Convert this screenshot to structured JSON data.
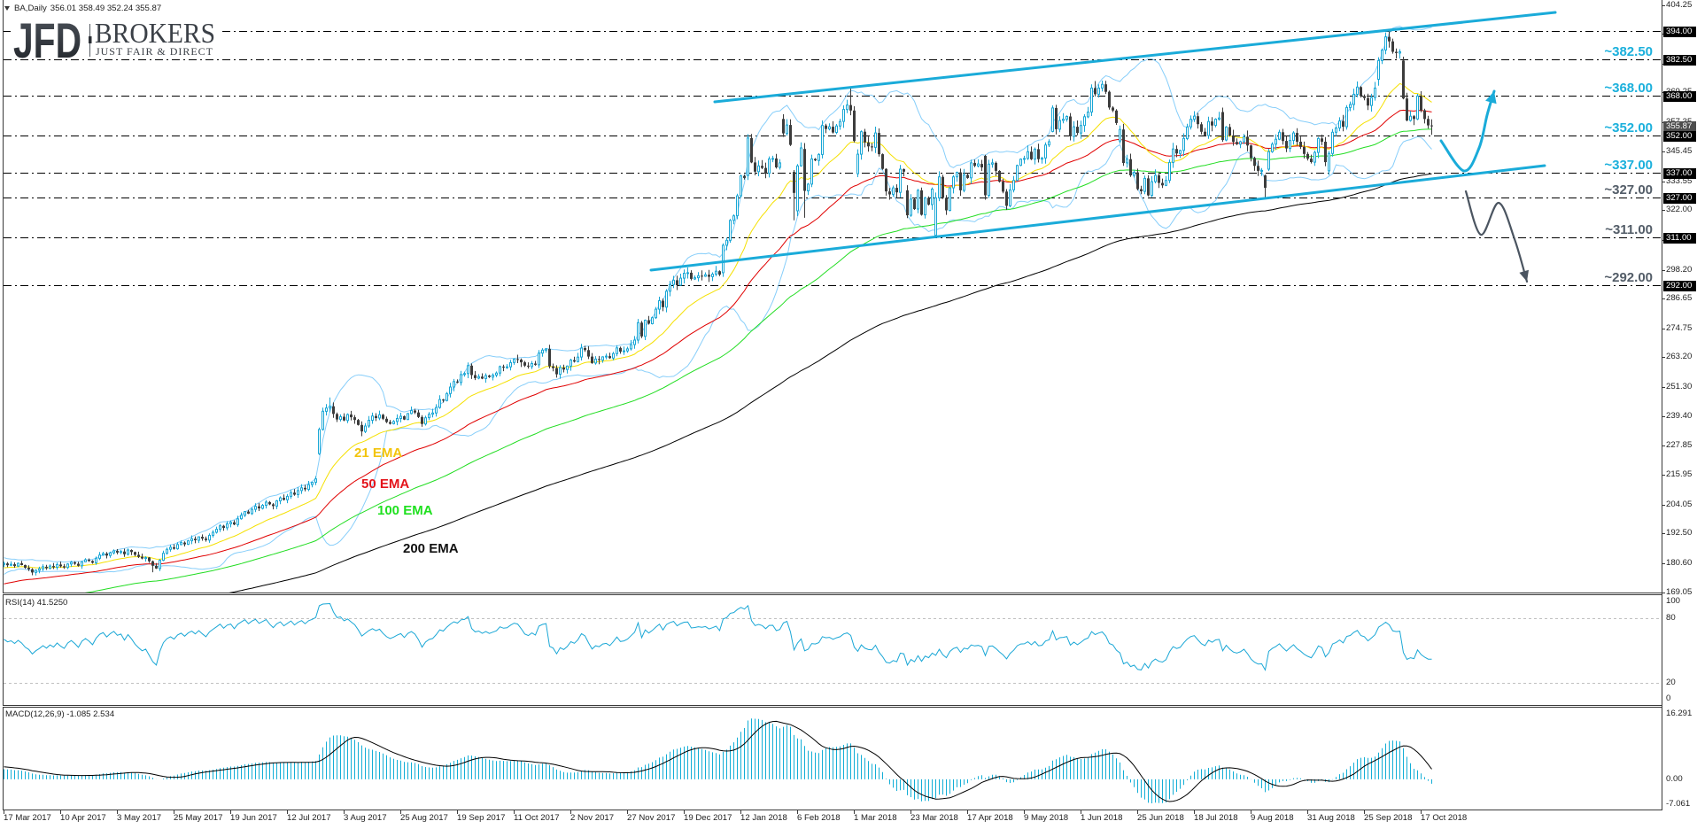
{
  "header": {
    "symbol": "BA,Daily",
    "ohlc": "356.01 358.49 352.24 355.87",
    "dropdown_icon": "triangle-down-icon"
  },
  "logo": {
    "brand": "JFD",
    "name": "BROKERS",
    "tagline": "JUST FAIR & DIRECT"
  },
  "indicators": {
    "rsi_label": "RSI(14) 41.5250",
    "macd_label": "MACD(12,26,9) -1.085 2.534"
  },
  "ema_labels": [
    {
      "text": "21 EMA",
      "color": "#f2c40c"
    },
    {
      "text": "50 EMA",
      "color": "#e4141b"
    },
    {
      "text": "100 EMA",
      "color": "#1fe01f"
    },
    {
      "text": "200 EMA",
      "color": "#111111"
    }
  ],
  "colors": {
    "bull": "#1aa7d6",
    "bear": "#3c3c3c",
    "channel": "#1aabd9",
    "bands": "#87cefa",
    "level_line": "#000000",
    "axis_text": "#222222",
    "border": "#3a3a3a"
  },
  "chart_data": {
    "type": "line",
    "subtype": "candlestick",
    "title": "BA,Daily",
    "xlabel": "",
    "ylabel": "",
    "ylim": [
      169.05,
      404.25
    ],
    "grid": false,
    "legend": "none",
    "last_bar": {
      "open": 356.01,
      "high": 358.49,
      "low": 352.24,
      "close": 355.87
    },
    "y_ticks": [
      "404.25",
      "392.70",
      "380.80",
      "369.25",
      "357.35",
      "345.45",
      "333.55",
      "322.00",
      "310.10",
      "298.20",
      "286.65",
      "274.75",
      "263.20",
      "251.30",
      "239.40",
      "227.85",
      "215.95",
      "204.05",
      "192.50",
      "180.60",
      "169.05"
    ],
    "x_labels": [
      {
        "bar": 0,
        "label": "17 Mar 2017"
      },
      {
        "bar": 16,
        "label": "10 Apr 2017"
      },
      {
        "bar": 32,
        "label": "3 May 2017"
      },
      {
        "bar": 48,
        "label": "25 May 2017"
      },
      {
        "bar": 64,
        "label": "19 Jun 2017"
      },
      {
        "bar": 80,
        "label": "12 Jul 2017"
      },
      {
        "bar": 96,
        "label": "3 Aug 2017"
      },
      {
        "bar": 112,
        "label": "25 Aug 2017"
      },
      {
        "bar": 128,
        "label": "19 Sep 2017"
      },
      {
        "bar": 144,
        "label": "11 Oct 2017"
      },
      {
        "bar": 160,
        "label": "2 Nov 2017"
      },
      {
        "bar": 176,
        "label": "27 Nov 2017"
      },
      {
        "bar": 192,
        "label": "19 Dec 2017"
      },
      {
        "bar": 208,
        "label": "12 Jan 2018"
      },
      {
        "bar": 224,
        "label": "6 Feb 2018"
      },
      {
        "bar": 240,
        "label": "1 Mar 2018"
      },
      {
        "bar": 256,
        "label": "23 Mar 2018"
      },
      {
        "bar": 272,
        "label": "17 Apr 2018"
      },
      {
        "bar": 288,
        "label": "9 May 2018"
      },
      {
        "bar": 304,
        "label": "1 Jun 2018"
      },
      {
        "bar": 320,
        "label": "25 Jun 2018"
      },
      {
        "bar": 336,
        "label": "18 Jul 2018"
      },
      {
        "bar": 352,
        "label": "9 Aug 2018"
      },
      {
        "bar": 368,
        "label": "31 Aug 2018"
      },
      {
        "bar": 384,
        "label": "25 Sep 2018"
      },
      {
        "bar": 400,
        "label": "17 Oct 2018"
      }
    ],
    "pre_closes": [
      175.2,
      176.8,
      178.4,
      177.1,
      179.6,
      180.9,
      179.2,
      181.4,
      182.1,
      180.6,
      179.0,
      178.3,
      180.2,
      181.5,
      179.8,
      178.9,
      180.7,
      179.6,
      180.1
    ],
    "closes": [
      180.5,
      179.8,
      180.2,
      179.5,
      180.6,
      179.9,
      178.8,
      178.2,
      176.9,
      177.8,
      178.4,
      179.2,
      178.6,
      179.5,
      179.0,
      180.1,
      179.4,
      178.9,
      180.3,
      181.0,
      180.4,
      179.6,
      181.2,
      182.0,
      181.5,
      180.8,
      182.6,
      183.9,
      184.5,
      183.7,
      184.8,
      185.6,
      184.9,
      185.3,
      184.2,
      185.9,
      185.1,
      184.0,
      183.2,
      182.5,
      182.9,
      181.4,
      179.6,
      178.5,
      181.8,
      184.6,
      186.2,
      187.0,
      186.4,
      188.1,
      188.9,
      188.2,
      189.6,
      190.4,
      189.8,
      191.2,
      190.5,
      189.9,
      191.8,
      193.0,
      194.2,
      195.6,
      194.8,
      196.4,
      197.0,
      196.1,
      198.4,
      199.8,
      201.3,
      200.5,
      202.2,
      203.4,
      202.6,
      203.8,
      205.1,
      204.2,
      203.5,
      205.6,
      206.8,
      206.0,
      207.4,
      208.9,
      208.1,
      209.7,
      210.8,
      210.2,
      212.1,
      213.0,
      214.4,
      234.2,
      241.5,
      242.8,
      243.5,
      240.4,
      238.2,
      239.3,
      237.8,
      240.2,
      239.1,
      238.0,
      236.0,
      233.4,
      235.6,
      237.9,
      239.6,
      238.8,
      240.1,
      238.5,
      237.2,
      236.5,
      237.4,
      238.6,
      239.5,
      238.2,
      240.6,
      241.8,
      241.0,
      239.2,
      236.4,
      238.9,
      240.3,
      240.8,
      243.0,
      246.2,
      245.8,
      248.6,
      251.2,
      253.4,
      253.0,
      256.2,
      256.6,
      259.8,
      256.0,
      254.8,
      255.4,
      254.6,
      255.8,
      255.2,
      256.0,
      256.8,
      259.4,
      259.0,
      259.3,
      261.0,
      262.4,
      262.2,
      261.1,
      259.8,
      259.4,
      260.6,
      260.1,
      264.8,
      266.0,
      266.5,
      259.5,
      258.8,
      256.3,
      259.0,
      258.2,
      259.6,
      262.0,
      261.4,
      263.2,
      266.8,
      266.0,
      263.4,
      260.8,
      262.4,
      262.0,
      263.3,
      263.6,
      262.8,
      264.6,
      266.9,
      265.4,
      265.7,
      266.5,
      268.2,
      270.0,
      277.0,
      271.5,
      278.0,
      276.6,
      279.0,
      282.4,
      285.8,
      283.2,
      289.6,
      292.3,
      294.0,
      292.0,
      294.8,
      296.8,
      297.0,
      294.5,
      295.0,
      295.8,
      295.6,
      296.2,
      295.4,
      296.4,
      297.6,
      296.2,
      308.0,
      310.0,
      318.0,
      319.8,
      327.8,
      335.8,
      335.0,
      351.0,
      341.2,
      337.5,
      339.8,
      339.0,
      336.8,
      342.6,
      342.8,
      339.2,
      341.0,
      352.8,
      356.2,
      348.2,
      329.0,
      339.8,
      347.0,
      329.8,
      332.5,
      342.6,
      342.0,
      344.4,
      356.0,
      354.6,
      355.5,
      353.2,
      355.8,
      357.6,
      362.4,
      364.2,
      362.0,
      349.8,
      344.5,
      353.5,
      349.2,
      347.6,
      347.2,
      353.0,
      344.5,
      338.6,
      329.6,
      328.4,
      331.0,
      329.2,
      338.5,
      337.5,
      320.0,
      326.5,
      322.5,
      330.0,
      320.2,
      327.0,
      324.3,
      330.5,
      327.0,
      335.4,
      327.0,
      322.0,
      331.0,
      335.4,
      337.2,
      330.0,
      336.2,
      335.0,
      341.0,
      339.8,
      340.6,
      339.2,
      328.0,
      340.5,
      341.0,
      337.8,
      333.5,
      329.5,
      323.8,
      330.2,
      334.0,
      340.0,
      342.5,
      342.8,
      345.5,
      342.5,
      346.5,
      342.5,
      343.0,
      348.2,
      349.5,
      363.0,
      354.5,
      358.0,
      358.5,
      359.6,
      351.6,
      355.5,
      353.0,
      356.0,
      359.5,
      361.4,
      371.0,
      368.5,
      371.0,
      372.5,
      369.5,
      363.2,
      362.0,
      357.0,
      354.4,
      341.0,
      342.5,
      336.0,
      337.2,
      330.5,
      329.6,
      334.8,
      328.0,
      333.5,
      336.0,
      333.0,
      332.0,
      334.0,
      341.2,
      346.6,
      344.8,
      346.0,
      350.8,
      355.4,
      358.5,
      359.7,
      356.5,
      353.5,
      352.0,
      357.6,
      356.0,
      358.5,
      359.0,
      350.2,
      355.4,
      352.0,
      349.4,
      348.5,
      349.5,
      351.5,
      348.0,
      343.0,
      339.8,
      337.8,
      338.0,
      331.0,
      345.5,
      348.5,
      350.5,
      353.3,
      349.8,
      346.8,
      350.0,
      353.0,
      349.5,
      347.4,
      344.6,
      342.7,
      341.3,
      345.2,
      350.8,
      349.5,
      341.3,
      344.8,
      353.3,
      355.0,
      357.8,
      355.5,
      363.2,
      364.4,
      368.5,
      371.4,
      367.8,
      367.0,
      364.0,
      367.2,
      371.0,
      382.0,
      386.2,
      391.5,
      389.7,
      385.5,
      385.0,
      385.5,
      366.8,
      358.0,
      359.7,
      358.6,
      367.8,
      362.1,
      358.6,
      356.0,
      355.87
    ],
    "open_overrides": {
      "89": 224.5,
      "203": 297.0,
      "210": 336.0,
      "220": 358.6,
      "223": 337.4,
      "224": 321.8,
      "226": 346.6,
      "241": 336.7,
      "255": 330.0,
      "263": 312.0,
      "277": 343.8,
      "296": 353.6,
      "315": 349.8,
      "344": 361.4,
      "356": 336.0,
      "357": 338.5,
      "374": 337.8,
      "388": 374.5,
      "395": 382.0,
      "399": 358.6,
      "403": 356.01
    },
    "high_overrides": {
      "92": 247.0,
      "210": 352.5,
      "220": 360.5,
      "239": 371.0,
      "307": 372.5,
      "308": 373.8,
      "390": 393.3,
      "403": 358.49
    },
    "low_overrides": {
      "42": 177.0,
      "101": 231.5,
      "223": 318.0,
      "226": 319.0,
      "263": 311.0,
      "356": 327.1,
      "403": 352.24
    },
    "levels": [
      {
        "price": 394.0,
        "label": "",
        "color": "#1bb0dc"
      },
      {
        "price": 382.5,
        "label": "~382.50",
        "color": "#1bb0dc"
      },
      {
        "price": 368.0,
        "label": "~368.00",
        "color": "#1bb0dc"
      },
      {
        "price": 352.0,
        "label": "~352.00",
        "color": "#1bb0dc"
      },
      {
        "price": 337.0,
        "label": "~337.00",
        "color": "#1bb0dc"
      },
      {
        "price": 327.0,
        "label": "~327.00",
        "color": "#535d68"
      },
      {
        "price": 311.0,
        "label": "~311.00",
        "color": "#535d68"
      },
      {
        "price": 292.0,
        "label": "~292.00",
        "color": "#535d68"
      }
    ],
    "price_tags": [
      {
        "text": "394.00",
        "price": 394.0,
        "bg": "#000000"
      },
      {
        "text": "382.50",
        "price": 382.5,
        "bg": "#000000"
      },
      {
        "text": "368.00",
        "price": 368.0,
        "bg": "#000000"
      },
      {
        "text": "355.87",
        "price": 355.87,
        "bg": "#4d4d4d"
      },
      {
        "text": "352.00",
        "price": 352.0,
        "bg": "#000000"
      },
      {
        "text": "337.00",
        "price": 337.0,
        "bg": "#000000"
      },
      {
        "text": "327.00",
        "price": 327.0,
        "bg": "#000000"
      },
      {
        "text": "311.00",
        "price": 311.0,
        "bg": "#000000"
      },
      {
        "text": "292.00",
        "price": 292.0,
        "bg": "#000000"
      }
    ],
    "series": [
      {
        "name": "21 EMA",
        "period": 21,
        "color": "#f5e000",
        "initial_value": 178.6
      },
      {
        "name": "50 EMA",
        "period": 50,
        "color": "#e00000",
        "initial_value": 172.0
      },
      {
        "name": "100 EMA",
        "period": 100,
        "color": "#22dd22",
        "initial_value": 162.0
      },
      {
        "name": "200 EMA",
        "period": 200,
        "color": "#000000",
        "initial_value": 154.0
      }
    ],
    "bollinger": {
      "name": "Bollinger Bands",
      "period": 20,
      "deviation": 2,
      "color": "#87cefa"
    },
    "trend_channel": {
      "color": "#1aabd9",
      "upper": {
        "from": [
          200.75,
          365.46
        ],
        "to": [
          438,
          401.3
        ]
      },
      "lower": {
        "from": [
          182.75,
          298.05
        ],
        "to": [
          435,
          339.91
        ]
      }
    },
    "scenario_arrows": [
      {
        "name": "bullish-scenario",
        "color": "#1aabd9",
        "points": [
          [
            405.75,
            349.85
          ],
          [
            412.25,
            337.79
          ],
          [
            416.5,
            347.01
          ],
          [
            418.75,
            360.14
          ],
          [
            420.75,
            369.72
          ]
        ]
      },
      {
        "name": "bearish-scenario",
        "color": "#4b5561",
        "points": [
          [
            412.75,
            329.62
          ],
          [
            417,
            312.25
          ],
          [
            422,
            325.01
          ],
          [
            426.5,
            310.46
          ],
          [
            430,
            293.45
          ]
        ]
      }
    ],
    "rsi": {
      "name": "RSI(14)",
      "period": 14,
      "value": 41.525,
      "levels": [
        80,
        20
      ],
      "ylim": [
        0,
        100
      ],
      "color": "#1aa7d6",
      "ticks": [
        "100",
        "80",
        "20",
        "0"
      ]
    },
    "macd": {
      "name": "MACD(12,26,9)",
      "fast": 12,
      "slow": 26,
      "signal": 9,
      "main_value": -1.085,
      "signal_value": 2.534,
      "ylim": [
        -7.061,
        16.291
      ],
      "ticks": [
        "16.291",
        "0.00",
        "-7.061"
      ],
      "histogram_color": "#13aed6",
      "signal_color": "#000000",
      "initial_values": {
        "fast": 177.8,
        "slow": 175.3,
        "signal": 3.2
      }
    }
  }
}
